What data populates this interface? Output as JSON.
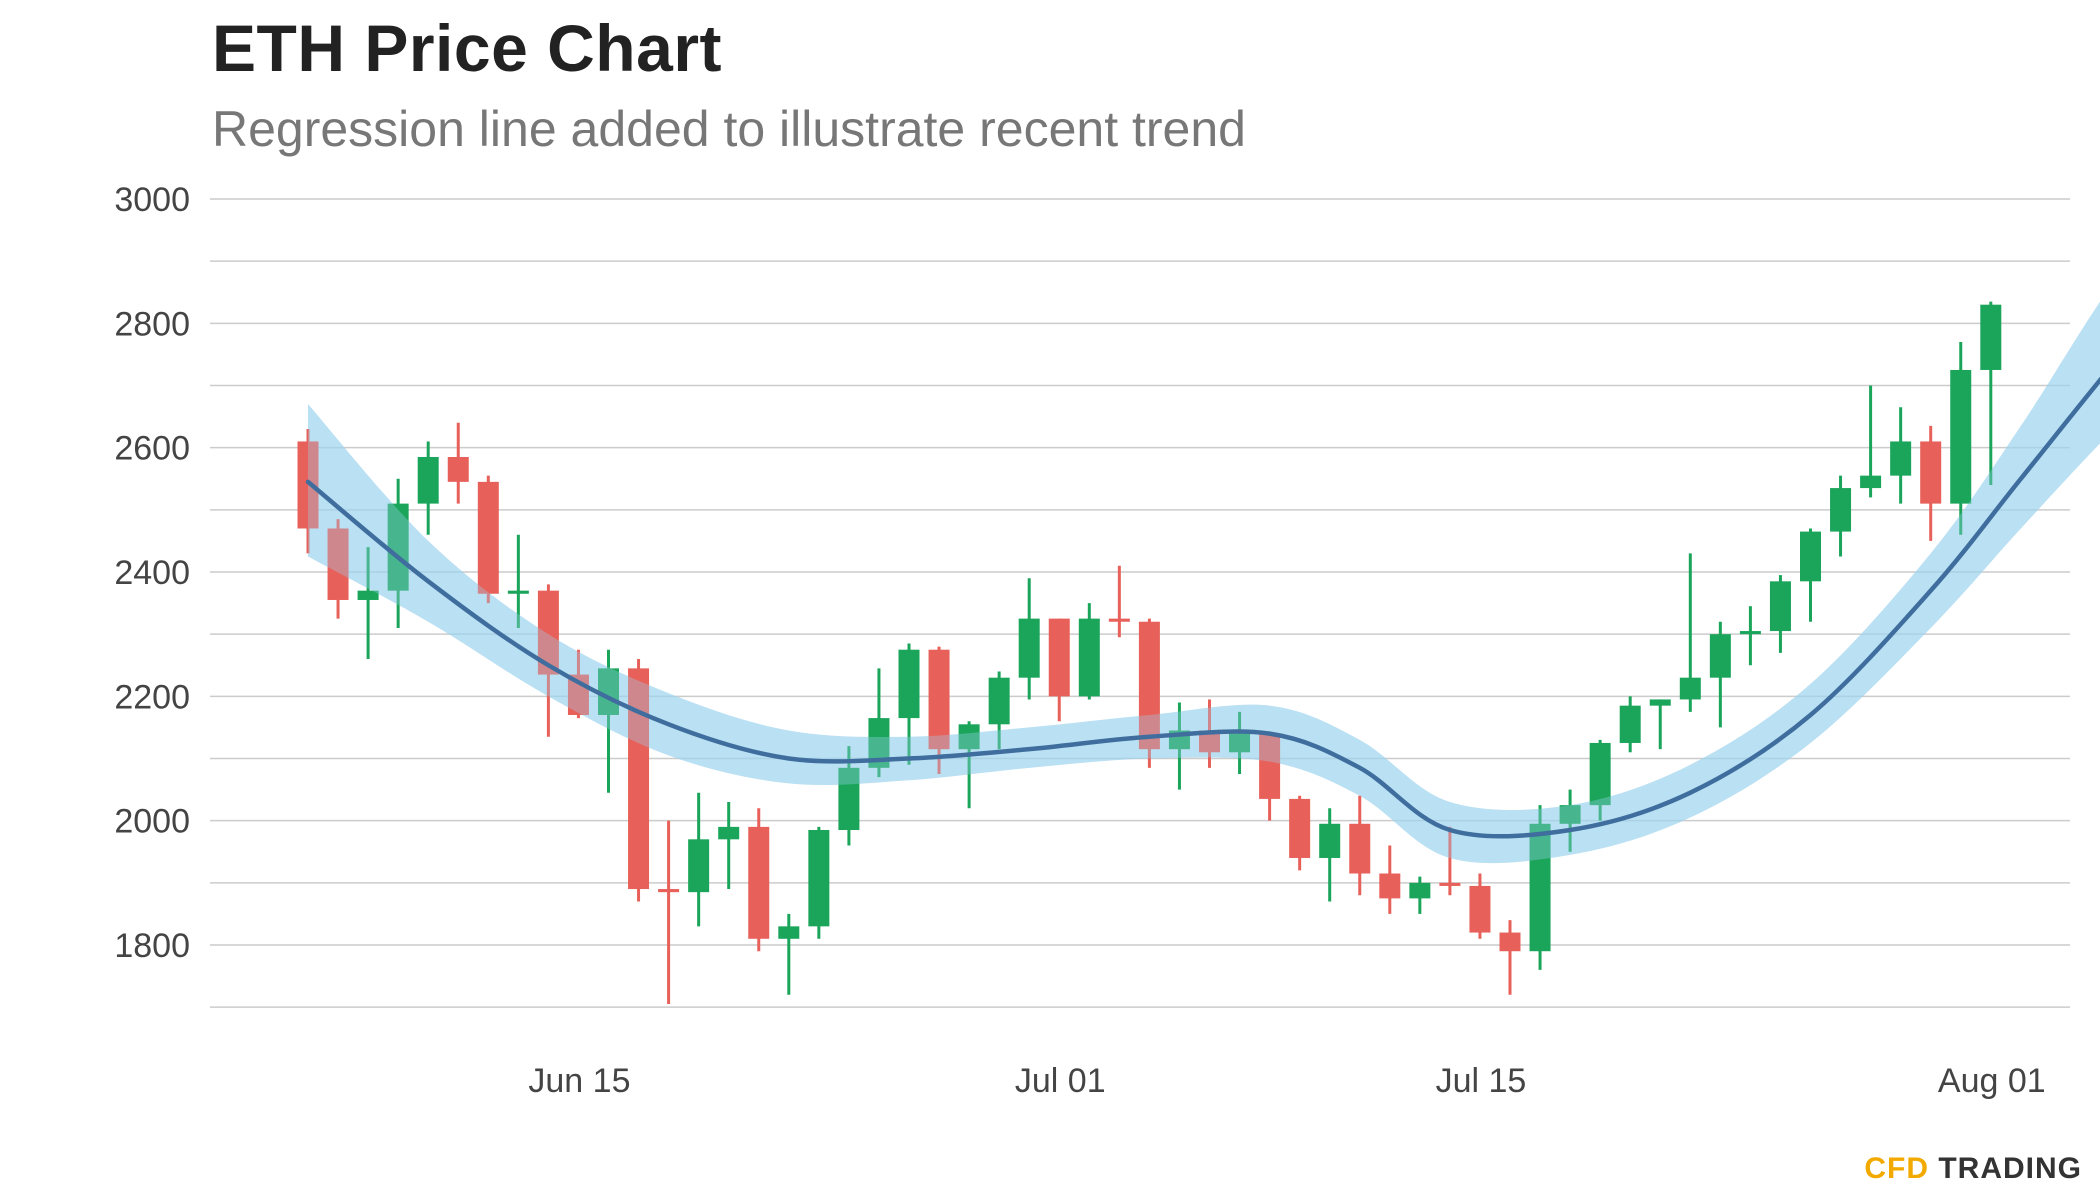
{
  "chart_data": {
    "type": "candlestick",
    "title": "ETH Price Chart",
    "subtitle": "Regression line added to illustrate recent trend",
    "ylim": [
      1700,
      3000
    ],
    "yticks": [
      1800,
      2000,
      2200,
      2400,
      2600,
      2800,
      3000
    ],
    "x_tick_labels": [
      {
        "day": 8,
        "label": "Jun 15"
      },
      {
        "day": 24,
        "label": "Jul 01"
      },
      {
        "day": 38,
        "label": "Jul 15"
      },
      {
        "day": 55,
        "label": "Aug 01"
      }
    ],
    "candles": [
      {
        "date": "Jun 07",
        "o": 2610,
        "h": 2630,
        "l": 2430,
        "c": 2470
      },
      {
        "date": "Jun 08",
        "o": 2470,
        "h": 2485,
        "l": 2325,
        "c": 2355
      },
      {
        "date": "Jun 09",
        "o": 2355,
        "h": 2440,
        "l": 2260,
        "c": 2370
      },
      {
        "date": "Jun 10",
        "o": 2370,
        "h": 2550,
        "l": 2310,
        "c": 2510
      },
      {
        "date": "Jun 11",
        "o": 2510,
        "h": 2610,
        "l": 2460,
        "c": 2585
      },
      {
        "date": "Jun 12",
        "o": 2585,
        "h": 2640,
        "l": 2510,
        "c": 2545
      },
      {
        "date": "Jun 13",
        "o": 2545,
        "h": 2555,
        "l": 2350,
        "c": 2365
      },
      {
        "date": "Jun 14",
        "o": 2365,
        "h": 2460,
        "l": 2310,
        "c": 2370
      },
      {
        "date": "Jun 15",
        "o": 2370,
        "h": 2380,
        "l": 2135,
        "c": 2235
      },
      {
        "date": "Jun 16",
        "o": 2235,
        "h": 2275,
        "l": 2165,
        "c": 2170
      },
      {
        "date": "Jun 17",
        "o": 2170,
        "h": 2275,
        "l": 2045,
        "c": 2245
      },
      {
        "date": "Jun 18",
        "o": 2245,
        "h": 2260,
        "l": 1870,
        "c": 1890
      },
      {
        "date": "Jun 19",
        "o": 1890,
        "h": 2000,
        "l": 1705,
        "c": 1885
      },
      {
        "date": "Jun 20",
        "o": 1885,
        "h": 2045,
        "l": 1830,
        "c": 1970
      },
      {
        "date": "Jun 21",
        "o": 1970,
        "h": 2030,
        "l": 1890,
        "c": 1990
      },
      {
        "date": "Jun 22",
        "o": 1990,
        "h": 2020,
        "l": 1790,
        "c": 1810
      },
      {
        "date": "Jun 23",
        "o": 1810,
        "h": 1850,
        "l": 1720,
        "c": 1830
      },
      {
        "date": "Jun 24",
        "o": 1830,
        "h": 1990,
        "l": 1810,
        "c": 1985
      },
      {
        "date": "Jun 25",
        "o": 1985,
        "h": 2120,
        "l": 1960,
        "c": 2085
      },
      {
        "date": "Jun 26",
        "o": 2085,
        "h": 2245,
        "l": 2070,
        "c": 2165
      },
      {
        "date": "Jun 27",
        "o": 2165,
        "h": 2285,
        "l": 2090,
        "c": 2275
      },
      {
        "date": "Jun 28",
        "o": 2275,
        "h": 2280,
        "l": 2075,
        "c": 2115
      },
      {
        "date": "Jun 29",
        "o": 2115,
        "h": 2160,
        "l": 2020,
        "c": 2155
      },
      {
        "date": "Jun 30",
        "o": 2155,
        "h": 2240,
        "l": 2115,
        "c": 2230
      },
      {
        "date": "Jul 01",
        "o": 2230,
        "h": 2390,
        "l": 2195,
        "c": 2325
      },
      {
        "date": "Jul 02",
        "o": 2325,
        "h": 2325,
        "l": 2160,
        "c": 2200
      },
      {
        "date": "Jul 03",
        "o": 2200,
        "h": 2350,
        "l": 2195,
        "c": 2325
      },
      {
        "date": "Jul 04",
        "o": 2325,
        "h": 2410,
        "l": 2295,
        "c": 2320
      },
      {
        "date": "Jul 05",
        "o": 2320,
        "h": 2325,
        "l": 2085,
        "c": 2115
      },
      {
        "date": "Jul 06",
        "o": 2115,
        "h": 2190,
        "l": 2050,
        "c": 2145
      },
      {
        "date": "Jul 07",
        "o": 2145,
        "h": 2195,
        "l": 2085,
        "c": 2110
      },
      {
        "date": "Jul 08",
        "o": 2110,
        "h": 2175,
        "l": 2075,
        "c": 2140
      },
      {
        "date": "Jul 09",
        "o": 2140,
        "h": 2140,
        "l": 2000,
        "c": 2035
      },
      {
        "date": "Jul 10",
        "o": 2035,
        "h": 2040,
        "l": 1920,
        "c": 1940
      },
      {
        "date": "Jul 11",
        "o": 1940,
        "h": 2020,
        "l": 1870,
        "c": 1995
      },
      {
        "date": "Jul 12",
        "o": 1995,
        "h": 2040,
        "l": 1880,
        "c": 1915
      },
      {
        "date": "Jul 13",
        "o": 1915,
        "h": 1960,
        "l": 1850,
        "c": 1875
      },
      {
        "date": "Jul 14",
        "o": 1875,
        "h": 1910,
        "l": 1850,
        "c": 1900
      },
      {
        "date": "Jul 15",
        "o": 1900,
        "h": 1990,
        "l": 1880,
        "c": 1895
      },
      {
        "date": "Jul 16",
        "o": 1895,
        "h": 1915,
        "l": 1810,
        "c": 1820
      },
      {
        "date": "Jul 17",
        "o": 1820,
        "h": 1840,
        "l": 1720,
        "c": 1790
      },
      {
        "date": "Jul 18",
        "o": 1790,
        "h": 2025,
        "l": 1760,
        "c": 1995
      },
      {
        "date": "Jul 19",
        "o": 1995,
        "h": 2050,
        "l": 1950,
        "c": 2025
      },
      {
        "date": "Jul 20",
        "o": 2025,
        "h": 2130,
        "l": 2000,
        "c": 2125
      },
      {
        "date": "Jul 21",
        "o": 2125,
        "h": 2200,
        "l": 2110,
        "c": 2185
      },
      {
        "date": "Jul 22",
        "o": 2185,
        "h": 2195,
        "l": 2115,
        "c": 2195
      },
      {
        "date": "Jul 23",
        "o": 2195,
        "h": 2430,
        "l": 2175,
        "c": 2230
      },
      {
        "date": "Jul 24",
        "o": 2230,
        "h": 2320,
        "l": 2150,
        "c": 2300
      },
      {
        "date": "Jul 25",
        "o": 2300,
        "h": 2345,
        "l": 2250,
        "c": 2305
      },
      {
        "date": "Jul 26",
        "o": 2305,
        "h": 2395,
        "l": 2270,
        "c": 2385
      },
      {
        "date": "Jul 27",
        "o": 2385,
        "h": 2470,
        "l": 2320,
        "c": 2465
      },
      {
        "date": "Jul 28",
        "o": 2465,
        "h": 2555,
        "l": 2425,
        "c": 2535
      },
      {
        "date": "Jul 29",
        "o": 2535,
        "h": 2700,
        "l": 2520,
        "c": 2555
      },
      {
        "date": "Jul 30",
        "o": 2555,
        "h": 2665,
        "l": 2510,
        "c": 2610
      },
      {
        "date": "Jul 31",
        "o": 2610,
        "h": 2635,
        "l": 2450,
        "c": 2510
      },
      {
        "date": "Aug 01",
        "o": 2510,
        "h": 2770,
        "l": 2460,
        "c": 2725
      },
      {
        "date": "Aug 02",
        "o": 2725,
        "h": 2835,
        "l": 2540,
        "c": 2830
      }
    ],
    "regression": [
      {
        "day": 0,
        "y": 2545,
        "lo": 2425,
        "hi": 2670
      },
      {
        "day": 4,
        "y": 2385,
        "lo": 2320,
        "hi": 2450
      },
      {
        "day": 8,
        "y": 2250,
        "lo": 2200,
        "hi": 2300
      },
      {
        "day": 12,
        "y": 2155,
        "lo": 2105,
        "hi": 2205
      },
      {
        "day": 16,
        "y": 2100,
        "lo": 2060,
        "hi": 2145
      },
      {
        "day": 20,
        "y": 2100,
        "lo": 2065,
        "hi": 2135
      },
      {
        "day": 24,
        "y": 2115,
        "lo": 2085,
        "hi": 2150
      },
      {
        "day": 28,
        "y": 2135,
        "lo": 2100,
        "hi": 2170
      },
      {
        "day": 32,
        "y": 2140,
        "lo": 2095,
        "hi": 2185
      },
      {
        "day": 35,
        "y": 2085,
        "lo": 2040,
        "hi": 2130
      },
      {
        "day": 38,
        "y": 1985,
        "lo": 1940,
        "hi": 2030
      },
      {
        "day": 42,
        "y": 1985,
        "lo": 1945,
        "hi": 2025
      },
      {
        "day": 46,
        "y": 2045,
        "lo": 2005,
        "hi": 2090
      },
      {
        "day": 50,
        "y": 2170,
        "lo": 2125,
        "hi": 2220
      },
      {
        "day": 54,
        "y": 2370,
        "lo": 2310,
        "hi": 2430
      },
      {
        "day": 57,
        "y": 2550,
        "lo": 2470,
        "hi": 2635
      },
      {
        "day": 60,
        "y": 2730,
        "lo": 2625,
        "hi": 2860
      },
      {
        "day": 62,
        "y": 2840,
        "lo": 2715,
        "hi": 2965
      }
    ],
    "colors": {
      "up": "#1aa55a",
      "down": "#e8605a",
      "regression_line": "#3f6e9e",
      "band": "#9fd3ee",
      "grid": "#cccccc"
    },
    "grid": true,
    "legend": "none"
  },
  "branding": {
    "part1": "CFD",
    "part2": "TRADING"
  }
}
